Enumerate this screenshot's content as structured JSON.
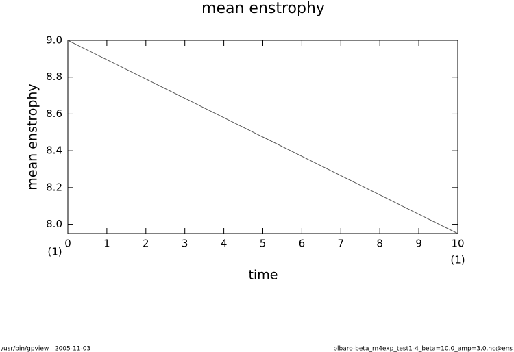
{
  "chart_data": {
    "type": "line",
    "title": "mean enstrophy",
    "xlabel": "time",
    "ylabel": "mean enstrophy",
    "x": [
      0,
      1,
      2,
      3,
      4,
      5,
      6,
      7,
      8,
      9,
      10
    ],
    "series": [
      {
        "name": "mean enstrophy",
        "color": "#555555",
        "values": [
          9.0,
          8.895,
          8.79,
          8.685,
          8.58,
          8.475,
          8.37,
          8.265,
          8.16,
          8.055,
          7.95
        ]
      }
    ],
    "xlim": [
      0,
      10
    ],
    "ylim": [
      7.95,
      9.0
    ],
    "xticks": [
      0,
      1,
      2,
      3,
      4,
      5,
      6,
      7,
      8,
      9,
      10
    ],
    "yticks": [
      {
        "value": 8.0,
        "label": "8.0"
      },
      {
        "value": 8.2,
        "label": "8.2"
      },
      {
        "value": 8.4,
        "label": "8.4"
      },
      {
        "value": 8.6,
        "label": "8.6"
      },
      {
        "value": 8.8,
        "label": "8.8"
      },
      {
        "value": 9.0,
        "label": "9.0"
      }
    ],
    "annotations": [
      "(1)",
      "(1)"
    ],
    "footer_left": "/usr/bin/gpview   2005-11-03",
    "footer_right": "plbaro-beta_rn4exp_test1-4_beta=10.0_amp=3.0.nc@ens"
  }
}
